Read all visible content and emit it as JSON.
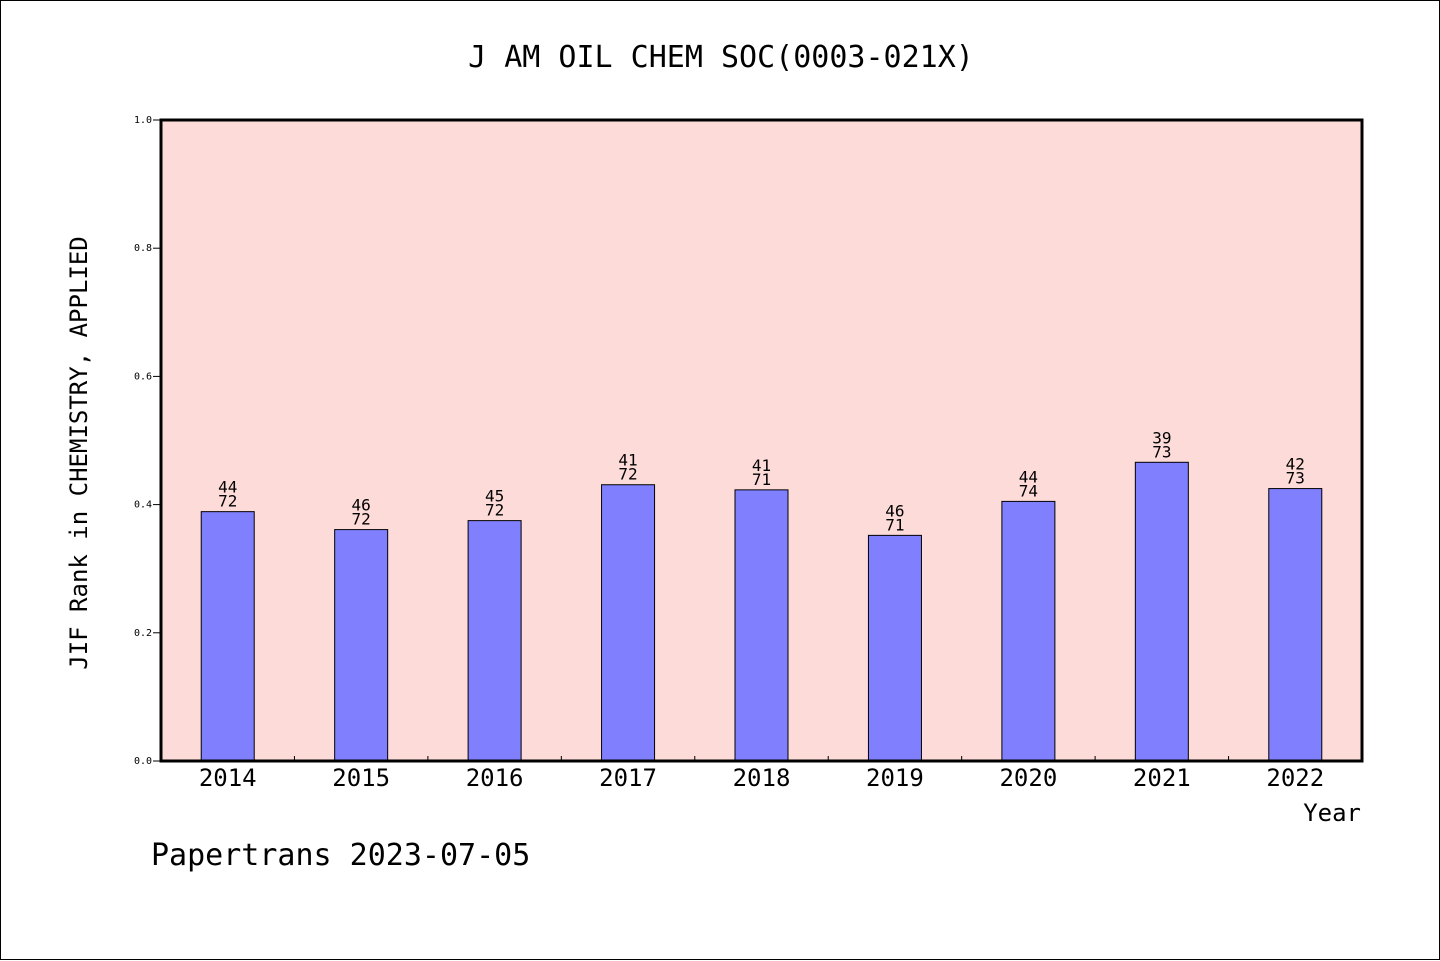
{
  "chart_data": {
    "type": "bar",
    "title": "J AM OIL CHEM SOC(0003-021X)",
    "xlabel": "Year",
    "ylabel": "JIF Rank in CHEMISTRY, APPLIED",
    "ylim": [
      0,
      1.0
    ],
    "yticks": [
      "0.0",
      "0.2",
      "0.4",
      "0.6",
      "0.8",
      "1.0"
    ],
    "grid": false,
    "categories": [
      "2014",
      "2015",
      "2016",
      "2017",
      "2018",
      "2019",
      "2020",
      "2021",
      "2022"
    ],
    "series": [
      {
        "values": [
          0.389,
          0.361,
          0.375,
          0.431,
          0.423,
          0.352,
          0.405,
          0.466,
          0.425
        ],
        "rank": [
          "44",
          "46",
          "45",
          "41",
          "41",
          "46",
          "44",
          "39",
          "42"
        ],
        "total": [
          "72",
          "72",
          "72",
          "72",
          "71",
          "71",
          "74",
          "73",
          "73"
        ]
      }
    ],
    "colors": {
      "plot_bg": "#fddbd8",
      "bar": "#8080ff",
      "axis": "#000000"
    }
  },
  "footer": {
    "credit": "Papertrans 2023-07-05"
  }
}
